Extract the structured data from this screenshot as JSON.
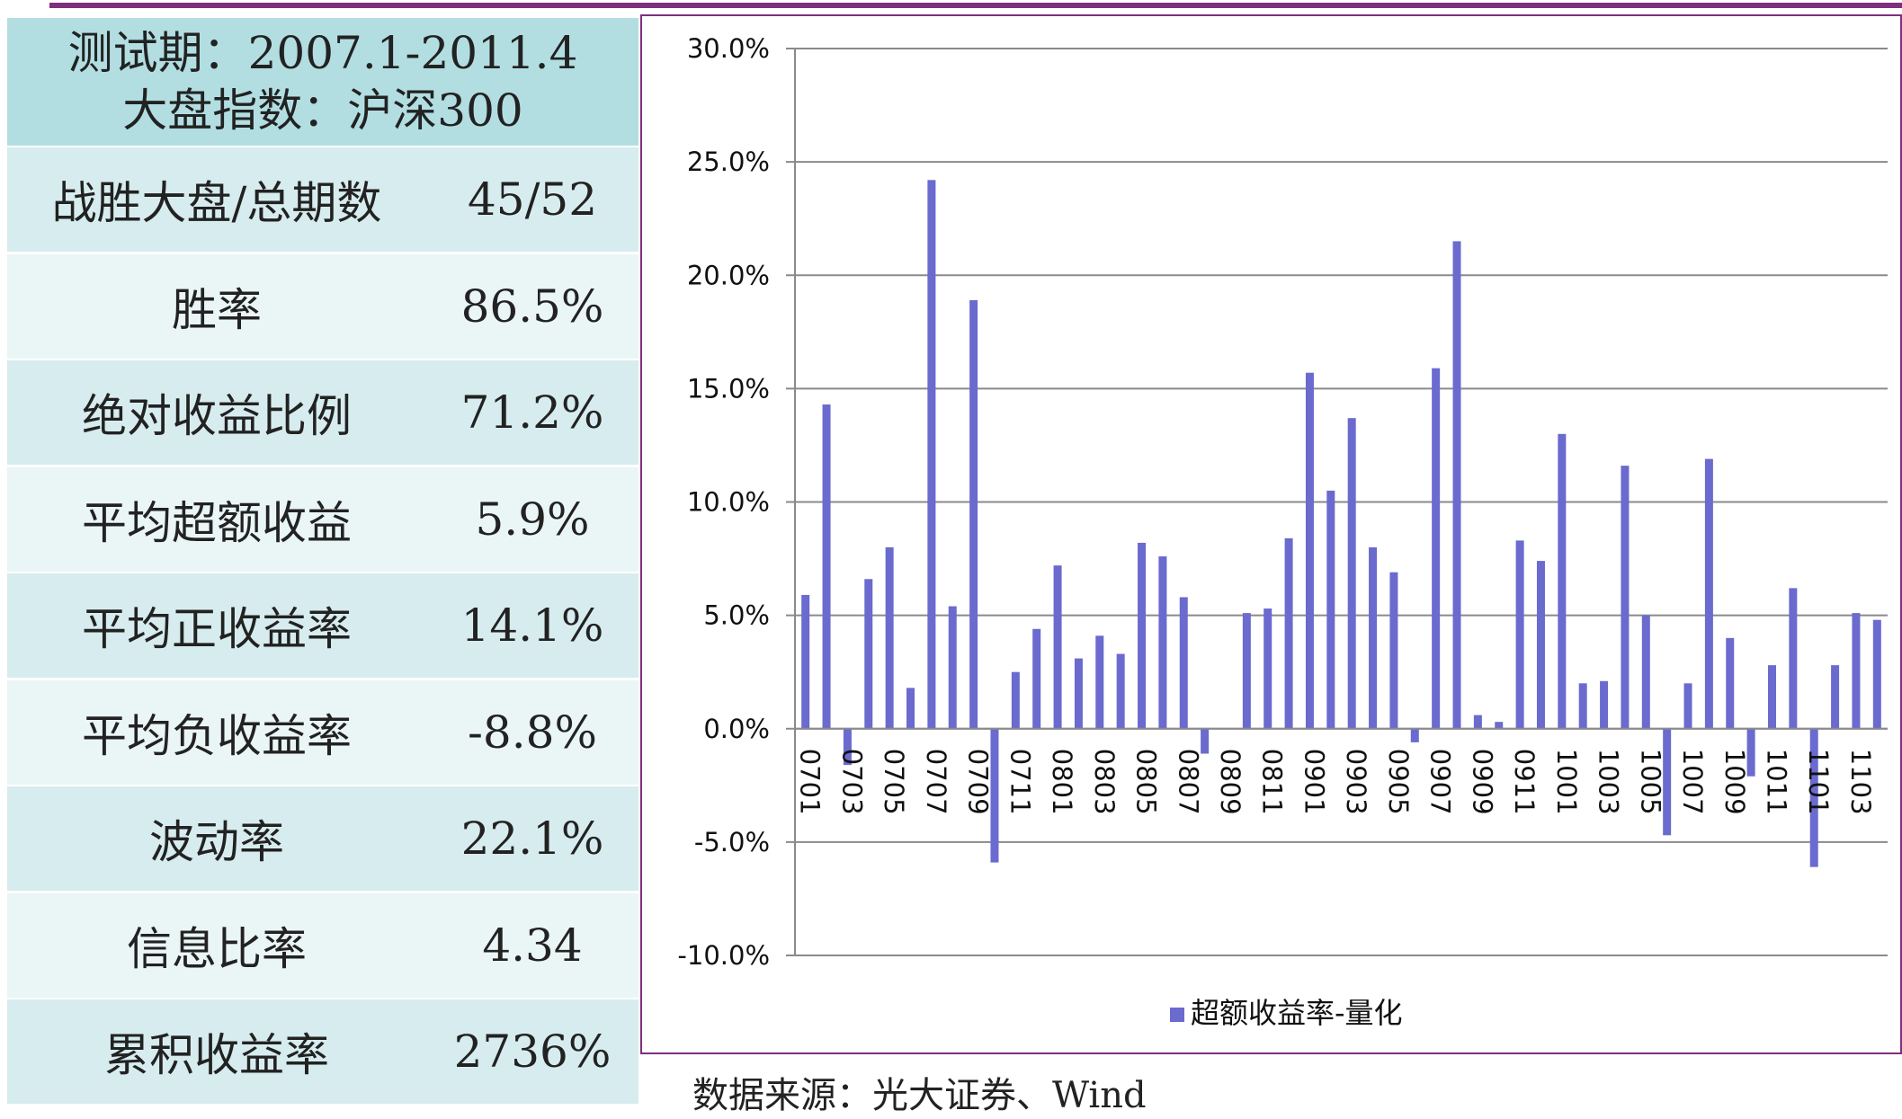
{
  "stats": {
    "header_line1": "测试期：2007.1-2011.4",
    "header_line2": "大盘指数：沪深300",
    "rows": [
      {
        "label": "战胜大盘/总期数",
        "value": "45/52"
      },
      {
        "label": "胜率",
        "value": "86.5%"
      },
      {
        "label": "绝对收益比例",
        "value": "71.2%"
      },
      {
        "label": "平均超额收益",
        "value": "5.9%"
      },
      {
        "label": "平均正收益率",
        "value": "14.1%"
      },
      {
        "label": "平均负收益率",
        "value": "-8.8%"
      },
      {
        "label": "波动率",
        "value": "22.1%"
      },
      {
        "label": "信息比率",
        "value": "4.34"
      },
      {
        "label": "累积收益率",
        "value": "2736%"
      }
    ]
  },
  "source_note": "数据来源：光大证券、Wind",
  "colors": {
    "bar": "#6a6acf",
    "frame": "#7e2f7e",
    "header_bg": "#b2dee2",
    "row_bg_a": "#d7ecee",
    "row_bg_b": "#eaf5f6",
    "grid": "#8a8a8a"
  },
  "chart_data": {
    "type": "bar",
    "legend": "超额收益率-量化",
    "legend_position": "bottom",
    "grid": true,
    "ylim": [
      -10,
      30
    ],
    "yticks": [
      30,
      25,
      20,
      15,
      10,
      5,
      0,
      -5,
      -10
    ],
    "ytick_labels": [
      "30.0%",
      "25.0%",
      "20.0%",
      "15.0%",
      "10.0%",
      "5.0%",
      "0.0%",
      "-5.0%",
      "-10.0%"
    ],
    "x_tick_labels": [
      "0701",
      "0703",
      "0705",
      "0707",
      "0709",
      "0711",
      "0801",
      "0803",
      "0805",
      "0807",
      "0809",
      "0811",
      "0901",
      "0903",
      "0905",
      "0907",
      "0909",
      "0911",
      "1001",
      "1003",
      "1005",
      "1007",
      "1009",
      "1011",
      "1101",
      "1103"
    ],
    "categories": [
      "0701",
      "0702",
      "0703",
      "0704",
      "0705",
      "0706",
      "0707",
      "0708",
      "0709",
      "0710",
      "0711",
      "0712",
      "0801",
      "0802",
      "0803",
      "0804",
      "0805",
      "0806",
      "0807",
      "0808",
      "0809",
      "0810",
      "0811",
      "0812",
      "0901",
      "0902",
      "0903",
      "0904",
      "0905",
      "0906",
      "0907",
      "0908",
      "0909",
      "0910",
      "0911",
      "0912",
      "1001",
      "1002",
      "1003",
      "1004",
      "1005",
      "1006",
      "1007",
      "1008",
      "1009",
      "1010",
      "1011",
      "1012",
      "1101",
      "1102",
      "1103",
      "1104"
    ],
    "values": [
      5.9,
      14.3,
      -1.6,
      6.6,
      8.0,
      1.8,
      24.2,
      5.4,
      18.9,
      -5.9,
      2.5,
      4.4,
      7.2,
      3.1,
      4.1,
      3.3,
      8.2,
      7.6,
      5.8,
      -1.1,
      0.0,
      5.1,
      5.3,
      8.4,
      15.7,
      10.5,
      13.7,
      8.0,
      6.9,
      -0.6,
      15.9,
      21.5,
      0.6,
      0.3,
      8.3,
      7.4,
      13.0,
      2.0,
      2.1,
      11.6,
      5.0,
      -4.7,
      2.0,
      11.9,
      4.0,
      -2.1,
      2.8,
      6.2,
      -6.1,
      2.8,
      5.1,
      4.8
    ]
  }
}
